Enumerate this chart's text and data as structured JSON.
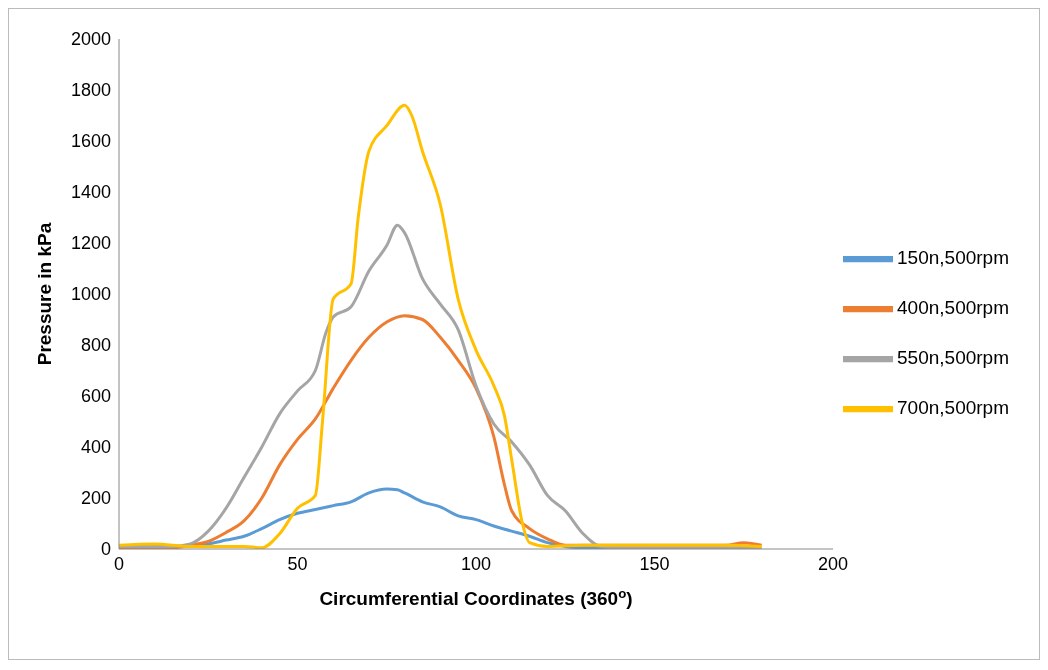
{
  "chart_data": {
    "type": "line",
    "xlabel": "Circumferential Coordinates (360$^{o}$)",
    "ylabel": "Pressure in kPa",
    "xlim": [
      0,
      200
    ],
    "xticks": [
      0,
      50,
      100,
      150,
      200
    ],
    "ylim": [
      0,
      2000
    ],
    "yticks": [
      0,
      200,
      400,
      600,
      800,
      1000,
      1200,
      1400,
      1600,
      1800,
      2000
    ],
    "grid": false,
    "legend": "right",
    "marker": "none",
    "line_style": "solid",
    "series": [
      {
        "name": "150n,500rpm",
        "color": "#5b9bd5",
        "x": [
          20,
          25,
          30,
          35,
          40,
          45,
          50,
          55,
          60,
          65,
          70,
          75,
          78,
          80,
          85,
          90,
          95,
          100,
          105,
          110,
          115,
          120,
          125,
          130,
          140,
          150
        ],
        "values": [
          15,
          20,
          35,
          50,
          80,
          115,
          140,
          155,
          170,
          185,
          220,
          235,
          232,
          220,
          185,
          165,
          130,
          115,
          90,
          70,
          50,
          25,
          10,
          5,
          5,
          10
        ]
      },
      {
        "name": "400n,500rpm",
        "color": "#ed7d31",
        "x": [
          0,
          15,
          20,
          25,
          30,
          35,
          40,
          45,
          50,
          55,
          60,
          65,
          70,
          75,
          80,
          85,
          90,
          95,
          100,
          105,
          108,
          110,
          115,
          120,
          125,
          130,
          150,
          170,
          175,
          180
        ],
        "values": [
          5,
          5,
          15,
          30,
          65,
          110,
          200,
          330,
          430,
          510,
          630,
          740,
          830,
          890,
          915,
          900,
          830,
          740,
          630,
          440,
          250,
          150,
          80,
          40,
          15,
          15,
          15,
          15,
          25,
          15
        ]
      },
      {
        "name": "550n,500rpm",
        "color": "#a5a5a5",
        "x": [
          0,
          15,
          20,
          25,
          30,
          35,
          40,
          45,
          50,
          55,
          58,
          60,
          65,
          70,
          75,
          78,
          80,
          85,
          90,
          95,
          100,
          105,
          110,
          115,
          120,
          125,
          130,
          135,
          140,
          180
        ],
        "values": [
          10,
          10,
          20,
          70,
          160,
          280,
          400,
          530,
          620,
          700,
          850,
          910,
          950,
          1090,
          1190,
          1270,
          1240,
          1060,
          960,
          860,
          640,
          490,
          420,
          330,
          210,
          150,
          60,
          10,
          5,
          5
        ]
      },
      {
        "name": "700n,500rpm",
        "color": "#ffc000",
        "x": [
          0,
          10,
          20,
          35,
          40,
          45,
          50,
          55,
          57,
          60,
          65,
          67,
          70,
          75,
          80,
          82,
          85,
          90,
          95,
          100,
          105,
          108,
          110,
          113,
          115,
          120,
          130,
          150,
          170,
          180
        ],
        "values": [
          15,
          20,
          10,
          10,
          5,
          60,
          160,
          210,
          500,
          980,
          1040,
          1300,
          1560,
          1660,
          1740,
          1700,
          1560,
          1350,
          980,
          780,
          640,
          520,
          350,
          100,
          25,
          10,
          15,
          15,
          15,
          10
        ]
      }
    ]
  }
}
